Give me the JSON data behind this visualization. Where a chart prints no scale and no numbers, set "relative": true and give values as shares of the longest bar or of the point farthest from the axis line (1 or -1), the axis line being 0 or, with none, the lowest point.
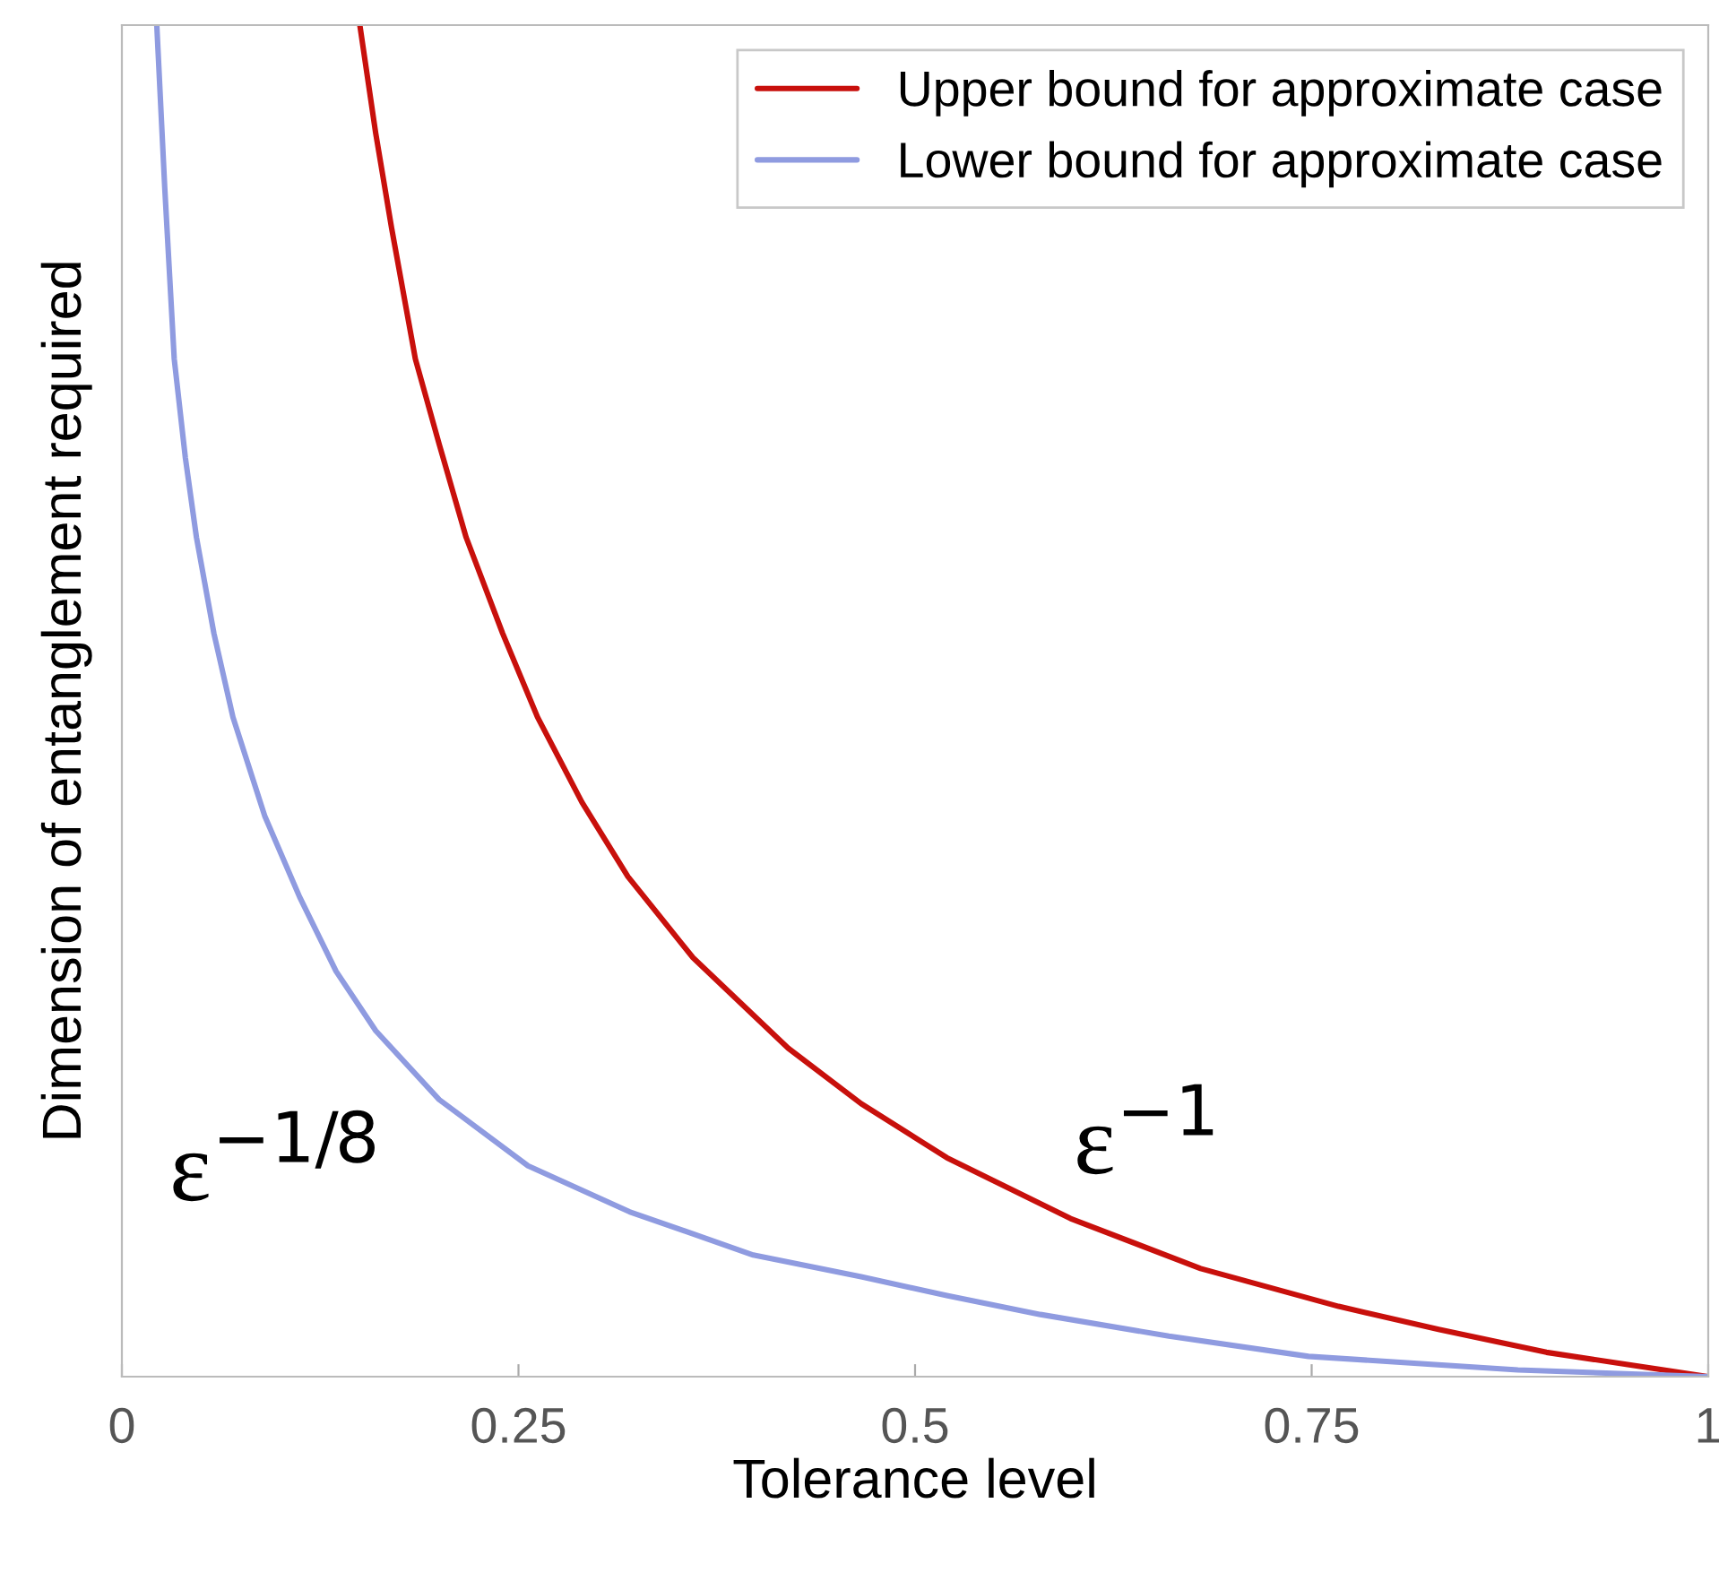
{
  "chart_data": {
    "type": "line",
    "relative": true,
    "xlabel": "Tolerance level",
    "ylabel": "Dimension of entanglement required",
    "xlim": [
      0,
      1
    ],
    "xticks": [
      0,
      0.25,
      0.5,
      0.75,
      1
    ],
    "legend": "top right",
    "grid": false,
    "series": [
      {
        "name": "Upper bound for approximate case",
        "color": "#c8100c",
        "x": [
          0.15,
          0.16,
          0.17,
          0.185,
          0.2,
          0.217,
          0.24,
          0.262,
          0.29,
          0.319,
          0.36,
          0.42,
          0.466,
          0.52,
          0.598,
          0.68,
          0.767,
          0.83,
          0.898,
          1
        ],
        "values": [
          1,
          0.92,
          0.85,
          0.753,
          0.69,
          0.621,
          0.55,
          0.488,
          0.425,
          0.37,
          0.31,
          0.243,
          0.202,
          0.162,
          0.117,
          0.08,
          0.052,
          0.035,
          0.018,
          0
        ]
      },
      {
        "name": "Lower bound for approximate case",
        "color": "#8f9be0",
        "x": [
          0.022,
          0.027,
          0.033,
          0.04,
          0.047,
          0.058,
          0.07,
          0.09,
          0.112,
          0.135,
          0.16,
          0.2,
          0.256,
          0.32,
          0.398,
          0.466,
          0.52,
          0.579,
          0.66,
          0.748,
          0.88,
          1
        ],
        "values": [
          1,
          0.88,
          0.753,
          0.68,
          0.621,
          0.55,
          0.488,
          0.415,
          0.355,
          0.3,
          0.256,
          0.205,
          0.156,
          0.122,
          0.09,
          0.074,
          0.06,
          0.046,
          0.03,
          0.015,
          0.005,
          0
        ]
      }
    ],
    "annotations": [
      "ε$^{−1/8}$",
      "ε$^{−1}$"
    ]
  }
}
